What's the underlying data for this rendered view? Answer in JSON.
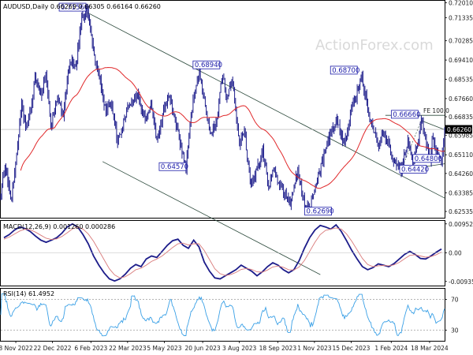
{
  "chart_data": [
    {
      "type": "candlestick",
      "title": "AUDUSD,Daily  0.66269 0.66305 0.66164 0.66260",
      "watermark": "ActionForex.com",
      "yticks": [
        "0.72010",
        "0.71335",
        "0.70285",
        "0.69410",
        "0.68535",
        "0.67660",
        "0.66835",
        "0.65985",
        "0.65110",
        "0.64260",
        "0.63385",
        "0.62535"
      ],
      "ylim": [
        0.6225,
        0.721
      ],
      "xlabels": [
        "8 Nov 2022",
        "22 Dec 2022",
        "6 Feb 2023",
        "22 Mar 2023",
        "5 May 2023",
        "20 Jun 2023",
        "3 Aug 2023",
        "18 Sep 2023",
        "1 Nov 2023",
        "15 Dec 2023",
        "1 Feb 2024",
        "18 Mar 2024"
      ],
      "current_price": "0.66260",
      "current_price_value": 0.6626,
      "fe_label": "FE 100.0",
      "fe_level": 0.669,
      "annotations": [
        {
          "label": "0.71560",
          "value": 0.7156,
          "date": "2023-02-02"
        },
        {
          "label": "0.68940",
          "value": 0.6894,
          "date": "2023-06-16"
        },
        {
          "label": "0.64570",
          "value": 0.6457,
          "date": "2023-05-31"
        },
        {
          "label": "0.62690",
          "value": 0.6269,
          "date": "2023-10-26"
        },
        {
          "label": "0.68700",
          "value": 0.687,
          "date": "2023-12-28"
        },
        {
          "label": "0.64420",
          "value": 0.6442,
          "date": "2024-02-13"
        },
        {
          "label": "0.66660",
          "value": 0.6666,
          "date": "2024-03-08"
        },
        {
          "label": "0.64800",
          "value": 0.648,
          "date": "2024-04-01"
        }
      ],
      "colors": {
        "bars": "#1c1c8a",
        "ma": "#e0282a",
        "channel": "#2c4a3c",
        "text": "#1a1aa8"
      }
    },
    {
      "type": "line",
      "title": "MACD(12,26,9) 0.001260 0.000286",
      "yticks": [
        "0.009524",
        "0.00",
        "-0.00935"
      ],
      "ylim": [
        -0.0107,
        0.0105
      ],
      "series": [
        {
          "name": "MACD",
          "color": "#1c1c8a",
          "values": [
            0.005,
            0.006,
            0.0075,
            0.0085,
            0.008,
            0.007,
            0.0055,
            0.0042,
            0.0035,
            0.0042,
            0.005,
            0.0065,
            0.0085,
            0.0095,
            0.0085,
            0.006,
            0.003,
            -0.001,
            -0.004,
            -0.0065,
            -0.0085,
            -0.0092,
            -0.0085,
            -0.007,
            -0.005,
            -0.0038,
            -0.0045,
            -0.002,
            -0.001,
            -0.0015,
            0.0005,
            0.0025,
            0.004,
            0.0045,
            0.0025,
            0.0015,
            0.0042,
            0.002,
            -0.003,
            -0.006,
            -0.0082,
            -0.0085,
            -0.0075,
            -0.0065,
            -0.0055,
            -0.004,
            -0.005,
            -0.006,
            -0.0075,
            -0.0062,
            -0.0045,
            -0.0032,
            -0.004,
            -0.0055,
            -0.0065,
            -0.0055,
            -0.0025,
            0.0015,
            0.005,
            0.0075,
            0.009,
            0.0085,
            0.0078,
            0.0092,
            0.007,
            0.004,
            0.0008,
            -0.002,
            -0.0045,
            -0.0055,
            -0.0048,
            -0.0036,
            -0.004,
            -0.0045,
            -0.0035,
            -0.002,
            -0.0005,
            0.0005,
            -0.0005,
            -0.0018,
            -0.002,
            -0.001,
            0.0002,
            0.00126
          ]
        },
        {
          "name": "Signal",
          "color": "#d97a7a",
          "values": [
            0.0045,
            0.0052,
            0.0062,
            0.0072,
            0.0078,
            0.0076,
            0.0068,
            0.0058,
            0.0048,
            0.0044,
            0.0046,
            0.0054,
            0.0066,
            0.0079,
            0.0085,
            0.0078,
            0.0062,
            0.0038,
            0.0008,
            -0.0022,
            -0.0052,
            -0.0072,
            -0.0082,
            -0.0078,
            -0.0068,
            -0.0055,
            -0.005,
            -0.004,
            -0.0028,
            -0.002,
            -0.001,
            0.0004,
            0.0018,
            0.003,
            0.0032,
            0.0026,
            0.003,
            0.003,
            0.0008,
            -0.0022,
            -0.0052,
            -0.0068,
            -0.0074,
            -0.0071,
            -0.0064,
            -0.0054,
            -0.0051,
            -0.0054,
            -0.0062,
            -0.0063,
            -0.0056,
            -0.0046,
            -0.0043,
            -0.0047,
            -0.0055,
            -0.0056,
            -0.0046,
            -0.0025,
            0.0005,
            0.0035,
            0.006,
            0.0074,
            0.0078,
            0.0082,
            0.0078,
            0.0062,
            0.0038,
            0.001,
            -0.0018,
            -0.0038,
            -0.0045,
            -0.0042,
            -0.0041,
            -0.0042,
            -0.0039,
            -0.0031,
            -0.0019,
            -0.0008,
            -0.0006,
            -0.001,
            -0.0014,
            -0.0012,
            -0.0006,
            0.000286
          ]
        }
      ]
    },
    {
      "type": "line",
      "title": "RSI(14) 61.4952",
      "yticks": [
        "70",
        "30"
      ],
      "ylim": [
        16,
        84
      ],
      "levels": [
        70,
        30
      ],
      "current": 61.4952
    }
  ]
}
